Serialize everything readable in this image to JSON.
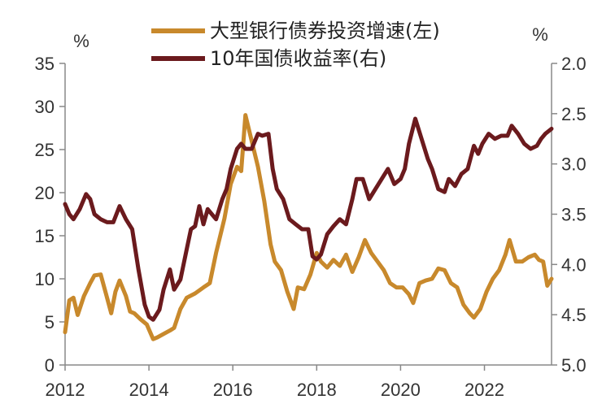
{
  "chart_data": {
    "type": "line",
    "title": "",
    "xlabel": "",
    "left_unit": "%",
    "right_unit": "%",
    "x_ticks": [
      "2012",
      "2014",
      "2016",
      "2018",
      "2020",
      "2022"
    ],
    "x_range": [
      2012.0,
      2023.6
    ],
    "y_left": {
      "ticks": [
        "0",
        "5",
        "10",
        "15",
        "20",
        "25",
        "30",
        "35"
      ],
      "range": [
        0,
        35
      ]
    },
    "y_right": {
      "ticks": [
        "2.0",
        "2.5",
        "3.0",
        "3.5",
        "4.0",
        "4.5",
        "5.0"
      ],
      "range": [
        2.0,
        5.0
      ],
      "inverted": true
    },
    "legend_position": "top",
    "grid": false,
    "series": [
      {
        "name": "大型银行债券投资增速(左)",
        "axis": "left",
        "color": "#C8892C",
        "points": [
          [
            2012.0,
            3.8
          ],
          [
            2012.1,
            7.5
          ],
          [
            2012.2,
            7.8
          ],
          [
            2012.3,
            5.8
          ],
          [
            2012.45,
            8.0
          ],
          [
            2012.6,
            9.5
          ],
          [
            2012.7,
            10.4
          ],
          [
            2012.85,
            10.5
          ],
          [
            2013.0,
            7.8
          ],
          [
            2013.1,
            6.0
          ],
          [
            2013.2,
            8.5
          ],
          [
            2013.3,
            9.8
          ],
          [
            2013.45,
            8.0
          ],
          [
            2013.55,
            6.2
          ],
          [
            2013.65,
            6.0
          ],
          [
            2013.8,
            5.3
          ],
          [
            2013.95,
            4.7
          ],
          [
            2014.1,
            3.0
          ],
          [
            2014.2,
            3.2
          ],
          [
            2014.35,
            3.6
          ],
          [
            2014.5,
            4.0
          ],
          [
            2014.6,
            4.3
          ],
          [
            2014.75,
            6.5
          ],
          [
            2014.9,
            7.8
          ],
          [
            2015.1,
            8.3
          ],
          [
            2015.3,
            9.0
          ],
          [
            2015.45,
            9.5
          ],
          [
            2015.6,
            13.0
          ],
          [
            2015.8,
            17.0
          ],
          [
            2015.95,
            21.0
          ],
          [
            2016.1,
            23.0
          ],
          [
            2016.2,
            22.5
          ],
          [
            2016.3,
            29.0
          ],
          [
            2016.45,
            26.0
          ],
          [
            2016.6,
            23.0
          ],
          [
            2016.75,
            19.0
          ],
          [
            2016.9,
            14.0
          ],
          [
            2017.0,
            12.0
          ],
          [
            2017.15,
            11.0
          ],
          [
            2017.3,
            8.5
          ],
          [
            2017.45,
            6.5
          ],
          [
            2017.55,
            9.0
          ],
          [
            2017.7,
            8.8
          ],
          [
            2017.85,
            10.5
          ],
          [
            2018.0,
            13.0
          ],
          [
            2018.1,
            12.0
          ],
          [
            2018.25,
            11.3
          ],
          [
            2018.4,
            12.2
          ],
          [
            2018.55,
            11.5
          ],
          [
            2018.7,
            12.8
          ],
          [
            2018.85,
            10.8
          ],
          [
            2019.0,
            12.5
          ],
          [
            2019.15,
            14.5
          ],
          [
            2019.3,
            13.0
          ],
          [
            2019.45,
            12.0
          ],
          [
            2019.6,
            11.0
          ],
          [
            2019.75,
            9.5
          ],
          [
            2019.9,
            9.0
          ],
          [
            2020.05,
            9.0
          ],
          [
            2020.2,
            8.2
          ],
          [
            2020.3,
            7.2
          ],
          [
            2020.45,
            9.5
          ],
          [
            2020.6,
            9.8
          ],
          [
            2020.75,
            10.0
          ],
          [
            2020.9,
            11.2
          ],
          [
            2021.05,
            11.0
          ],
          [
            2021.2,
            9.5
          ],
          [
            2021.35,
            9.0
          ],
          [
            2021.5,
            7.0
          ],
          [
            2021.65,
            6.0
          ],
          [
            2021.75,
            5.5
          ],
          [
            2021.9,
            6.5
          ],
          [
            2022.05,
            8.5
          ],
          [
            2022.2,
            10.0
          ],
          [
            2022.35,
            11.0
          ],
          [
            2022.5,
            12.8
          ],
          [
            2022.6,
            14.5
          ],
          [
            2022.75,
            12.0
          ],
          [
            2022.9,
            12.0
          ],
          [
            2023.05,
            12.5
          ],
          [
            2023.2,
            12.8
          ],
          [
            2023.3,
            12.2
          ],
          [
            2023.4,
            12.0
          ],
          [
            2023.5,
            9.2
          ],
          [
            2023.6,
            10.0
          ]
        ]
      },
      {
        "name": "10年国债收益率(右)",
        "axis": "right",
        "color": "#6B1A1D",
        "points": [
          [
            2012.0,
            3.4
          ],
          [
            2012.1,
            3.5
          ],
          [
            2012.2,
            3.55
          ],
          [
            2012.35,
            3.45
          ],
          [
            2012.5,
            3.3
          ],
          [
            2012.6,
            3.35
          ],
          [
            2012.7,
            3.5
          ],
          [
            2012.85,
            3.55
          ],
          [
            2013.0,
            3.58
          ],
          [
            2013.15,
            3.58
          ],
          [
            2013.3,
            3.42
          ],
          [
            2013.45,
            3.55
          ],
          [
            2013.6,
            3.65
          ],
          [
            2013.75,
            4.05
          ],
          [
            2013.9,
            4.4
          ],
          [
            2014.0,
            4.52
          ],
          [
            2014.1,
            4.55
          ],
          [
            2014.25,
            4.45
          ],
          [
            2014.35,
            4.25
          ],
          [
            2014.5,
            4.05
          ],
          [
            2014.6,
            4.25
          ],
          [
            2014.75,
            4.15
          ],
          [
            2014.9,
            3.85
          ],
          [
            2015.0,
            3.65
          ],
          [
            2015.1,
            3.62
          ],
          [
            2015.2,
            3.42
          ],
          [
            2015.3,
            3.6
          ],
          [
            2015.4,
            3.45
          ],
          [
            2015.5,
            3.5
          ],
          [
            2015.6,
            3.55
          ],
          [
            2015.75,
            3.35
          ],
          [
            2015.85,
            3.25
          ],
          [
            2015.95,
            3.05
          ],
          [
            2016.1,
            2.85
          ],
          [
            2016.2,
            2.8
          ],
          [
            2016.3,
            2.85
          ],
          [
            2016.45,
            2.85
          ],
          [
            2016.6,
            2.7
          ],
          [
            2016.7,
            2.72
          ],
          [
            2016.85,
            2.7
          ],
          [
            2016.95,
            3.05
          ],
          [
            2017.05,
            3.25
          ],
          [
            2017.2,
            3.35
          ],
          [
            2017.35,
            3.55
          ],
          [
            2017.5,
            3.6
          ],
          [
            2017.65,
            3.65
          ],
          [
            2017.8,
            3.65
          ],
          [
            2017.9,
            3.92
          ],
          [
            2018.0,
            3.95
          ],
          [
            2018.1,
            3.9
          ],
          [
            2018.25,
            3.7
          ],
          [
            2018.4,
            3.62
          ],
          [
            2018.55,
            3.55
          ],
          [
            2018.7,
            3.6
          ],
          [
            2018.85,
            3.35
          ],
          [
            2018.95,
            3.15
          ],
          [
            2019.1,
            3.15
          ],
          [
            2019.25,
            3.35
          ],
          [
            2019.4,
            3.25
          ],
          [
            2019.55,
            3.15
          ],
          [
            2019.7,
            3.05
          ],
          [
            2019.85,
            3.2
          ],
          [
            2020.0,
            3.15
          ],
          [
            2020.1,
            3.05
          ],
          [
            2020.2,
            2.8
          ],
          [
            2020.35,
            2.55
          ],
          [
            2020.5,
            2.75
          ],
          [
            2020.65,
            2.95
          ],
          [
            2020.75,
            3.05
          ],
          [
            2020.9,
            3.25
          ],
          [
            2021.05,
            3.28
          ],
          [
            2021.15,
            3.15
          ],
          [
            2021.3,
            3.22
          ],
          [
            2021.45,
            3.1
          ],
          [
            2021.6,
            3.05
          ],
          [
            2021.75,
            2.82
          ],
          [
            2021.85,
            2.9
          ],
          [
            2021.95,
            2.8
          ],
          [
            2022.1,
            2.7
          ],
          [
            2022.25,
            2.75
          ],
          [
            2022.4,
            2.72
          ],
          [
            2022.55,
            2.72
          ],
          [
            2022.65,
            2.62
          ],
          [
            2022.8,
            2.7
          ],
          [
            2022.95,
            2.8
          ],
          [
            2023.1,
            2.85
          ],
          [
            2023.25,
            2.82
          ],
          [
            2023.35,
            2.75
          ],
          [
            2023.45,
            2.7
          ],
          [
            2023.6,
            2.65
          ]
        ]
      }
    ]
  }
}
